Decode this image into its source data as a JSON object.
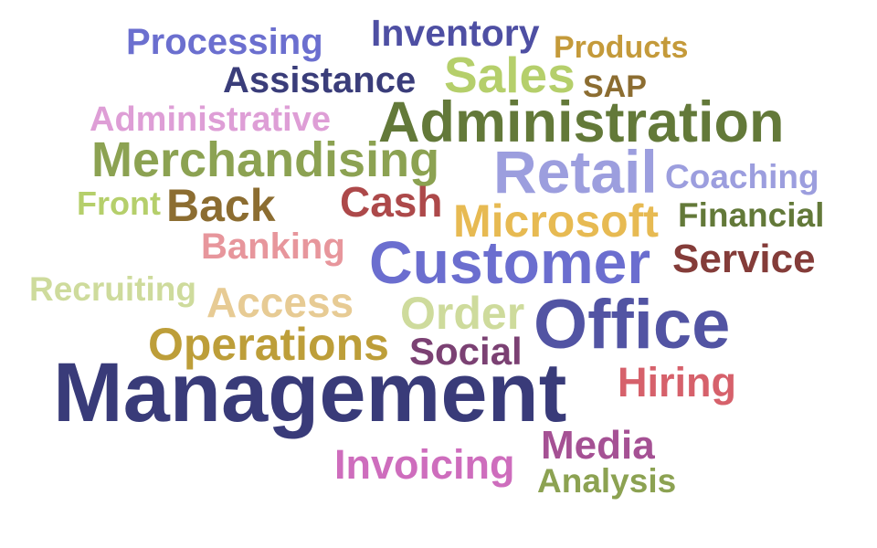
{
  "words": [
    {
      "text": "Processing",
      "color": "#6b6fcf"
    },
    {
      "text": "Inventory",
      "color": "#4e4fa3"
    },
    {
      "text": "Products",
      "color": "#c49a3a"
    },
    {
      "text": "Assistance",
      "color": "#3a3d7a"
    },
    {
      "text": "Sales",
      "color": "#b5cf6b"
    },
    {
      "text": "SAP",
      "color": "#8c6d31"
    },
    {
      "text": "Administrative",
      "color": "#de9ed6"
    },
    {
      "text": "Administration",
      "color": "#637939"
    },
    {
      "text": "Merchandising",
      "color": "#8ca252"
    },
    {
      "text": "Retail",
      "color": "#9c9ede"
    },
    {
      "text": "Coaching",
      "color": "#9c9ede"
    },
    {
      "text": "Front",
      "color": "#b5cf6b"
    },
    {
      "text": "Back",
      "color": "#8c6d31"
    },
    {
      "text": "Cash",
      "color": "#ad494a"
    },
    {
      "text": "Microsoft",
      "color": "#e7ba52"
    },
    {
      "text": "Financial",
      "color": "#637939"
    },
    {
      "text": "Banking",
      "color": "#e7969c"
    },
    {
      "text": "Customer",
      "color": "#6b6ecf"
    },
    {
      "text": "Service",
      "color": "#843c39"
    },
    {
      "text": "Recruiting",
      "color": "#cedb9c"
    },
    {
      "text": "Access",
      "color": "#e7cb94"
    },
    {
      "text": "Order",
      "color": "#cedb9c"
    },
    {
      "text": "Office",
      "color": "#5254a3"
    },
    {
      "text": "Operations",
      "color": "#bd9e39"
    },
    {
      "text": "Social",
      "color": "#7b4173"
    },
    {
      "text": "Management",
      "color": "#393b79"
    },
    {
      "text": "Hiring",
      "color": "#d6616b"
    },
    {
      "text": "Media",
      "color": "#a55194"
    },
    {
      "text": "Invoicing",
      "color": "#ce6dbd"
    },
    {
      "text": "Analysis",
      "color": "#8ca252"
    }
  ]
}
